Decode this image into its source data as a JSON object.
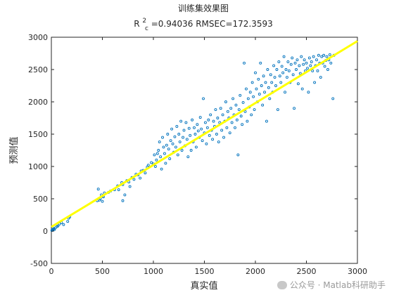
{
  "chart_data": {
    "type": "scatter",
    "title": "训练集效果图",
    "subtitle": {
      "r2_base": "R",
      "r2_sup": "2",
      "r2_sub": "c",
      "rest": "=0.94036  RMSEC=172.3593"
    },
    "xlabel": "真实值",
    "ylabel": "预测值",
    "xlim": [
      0,
      3000
    ],
    "ylim": [
      -500,
      3000
    ],
    "xticks": [
      "0",
      "500",
      "1000",
      "1500",
      "2000",
      "2500",
      "3000"
    ],
    "yticks": [
      "-500",
      "0",
      "500",
      "1000",
      "1500",
      "2000",
      "2500",
      "3000"
    ],
    "grid": false,
    "colors": {
      "points": "#0072BD",
      "fit_line": "#FFFF00",
      "axes": "#262626"
    },
    "fit_line": {
      "x": [
        0,
        3000
      ],
      "y": [
        65,
        2940
      ]
    },
    "series": [
      {
        "values": [
          [
            5,
            10
          ],
          [
            8,
            20
          ],
          [
            12,
            15
          ],
          [
            18,
            30
          ],
          [
            25,
            40
          ],
          [
            30,
            25
          ],
          [
            40,
            50
          ],
          [
            55,
            70
          ],
          [
            65,
            80
          ],
          [
            80,
            110
          ],
          [
            100,
            130
          ],
          [
            120,
            100
          ],
          [
            160,
            150
          ],
          [
            170,
            200
          ],
          [
            180,
            220
          ],
          [
            450,
            470
          ],
          [
            460,
            650
          ],
          [
            470,
            480
          ],
          [
            480,
            500
          ],
          [
            490,
            560
          ],
          [
            500,
            460
          ],
          [
            500,
            540
          ],
          [
            510,
            530
          ],
          [
            520,
            590
          ],
          [
            560,
            600
          ],
          [
            580,
            620
          ],
          [
            620,
            640
          ],
          [
            650,
            700
          ],
          [
            660,
            640
          ],
          [
            690,
            750
          ],
          [
            700,
            470
          ],
          [
            700,
            720
          ],
          [
            720,
            560
          ],
          [
            740,
            780
          ],
          [
            760,
            760
          ],
          [
            770,
            690
          ],
          [
            790,
            830
          ],
          [
            810,
            800
          ],
          [
            830,
            880
          ],
          [
            850,
            870
          ],
          [
            870,
            820
          ],
          [
            880,
            930
          ],
          [
            900,
            940
          ],
          [
            920,
            900
          ],
          [
            940,
            990
          ],
          [
            950,
            1020
          ],
          [
            980,
            1060
          ],
          [
            1000,
            1040
          ],
          [
            1010,
            1180
          ],
          [
            1020,
            1000
          ],
          [
            1030,
            1100
          ],
          [
            1040,
            1200
          ],
          [
            1050,
            1250
          ],
          [
            1060,
            1380
          ],
          [
            1070,
            1150
          ],
          [
            1080,
            960
          ],
          [
            1090,
            1450
          ],
          [
            1100,
            1300
          ],
          [
            1110,
            1200
          ],
          [
            1120,
            1050
          ],
          [
            1130,
            1330
          ],
          [
            1140,
            1500
          ],
          [
            1150,
            1270
          ],
          [
            1160,
            1120
          ],
          [
            1170,
            1400
          ],
          [
            1180,
            1580
          ],
          [
            1190,
            1350
          ],
          [
            1200,
            1220
          ],
          [
            1210,
            1460
          ],
          [
            1220,
            1300
          ],
          [
            1230,
            1620
          ],
          [
            1240,
            1180
          ],
          [
            1250,
            1500
          ],
          [
            1260,
            1380
          ],
          [
            1270,
            1700
          ],
          [
            1280,
            1250
          ],
          [
            1290,
            1450
          ],
          [
            1300,
            1560
          ],
          [
            1310,
            1320
          ],
          [
            1320,
            1680
          ],
          [
            1330,
            1420
          ],
          [
            1340,
            1150
          ],
          [
            1350,
            1590
          ],
          [
            1360,
            1480
          ],
          [
            1370,
            1250
          ],
          [
            1380,
            1720
          ],
          [
            1390,
            1380
          ],
          [
            1400,
            1600
          ],
          [
            1410,
            1500
          ],
          [
            1420,
            1300
          ],
          [
            1430,
            1650
          ],
          [
            1440,
            1550
          ],
          [
            1450,
            1450
          ],
          [
            1460,
            1760
          ],
          [
            1470,
            1580
          ],
          [
            1480,
            1400
          ],
          [
            1490,
            2050
          ],
          [
            1500,
            1520
          ],
          [
            1510,
            1680
          ],
          [
            1520,
            1350
          ],
          [
            1530,
            1600
          ],
          [
            1540,
            1720
          ],
          [
            1550,
            1480
          ],
          [
            1560,
            1800
          ],
          [
            1570,
            1560
          ],
          [
            1580,
            1420
          ],
          [
            1590,
            1700
          ],
          [
            1600,
            1620
          ],
          [
            1610,
            1880
          ],
          [
            1620,
            1500
          ],
          [
            1630,
            1750
          ],
          [
            1640,
            1380
          ],
          [
            1650,
            1680
          ],
          [
            1660,
            1900
          ],
          [
            1670,
            1560
          ],
          [
            1680,
            1800
          ],
          [
            1690,
            1450
          ],
          [
            1700,
            1700
          ],
          [
            1710,
            2000
          ],
          [
            1720,
            1600
          ],
          [
            1730,
            1850
          ],
          [
            1740,
            1750
          ],
          [
            1750,
            1520
          ],
          [
            1760,
            1900
          ],
          [
            1770,
            1680
          ],
          [
            1780,
            2050
          ],
          [
            1790,
            1800
          ],
          [
            1800,
            1600
          ],
          [
            1810,
            1950
          ],
          [
            1820,
            1720
          ],
          [
            1830,
            1180
          ],
          [
            1840,
            1880
          ],
          [
            1850,
            2100
          ],
          [
            1860,
            1780
          ],
          [
            1870,
            1650
          ],
          [
            1880,
            1990
          ],
          [
            1890,
            2600
          ],
          [
            1900,
            1850
          ],
          [
            1910,
            2200
          ],
          [
            1920,
            1700
          ],
          [
            1930,
            2050
          ],
          [
            1940,
            1920
          ],
          [
            1950,
            2150
          ],
          [
            1960,
            1800
          ],
          [
            1970,
            2300
          ],
          [
            1980,
            2080
          ],
          [
            1990,
            1880
          ],
          [
            2000,
            2450
          ],
          [
            2010,
            2200
          ],
          [
            2020,
            2000
          ],
          [
            2030,
            2350
          ],
          [
            2040,
            2120
          ],
          [
            2050,
            2600
          ],
          [
            2060,
            2250
          ],
          [
            2070,
            1950
          ],
          [
            2080,
            2400
          ],
          [
            2090,
            2150
          ],
          [
            2100,
            2300
          ],
          [
            2110,
            1700
          ],
          [
            2120,
            2500
          ],
          [
            2130,
            2220
          ],
          [
            2140,
            2050
          ],
          [
            2150,
            2420
          ],
          [
            2160,
            2300
          ],
          [
            2170,
            2150
          ],
          [
            2180,
            2560
          ],
          [
            2190,
            2380
          ],
          [
            2200,
            2250
          ],
          [
            2210,
            2500
          ],
          [
            2220,
            1880
          ],
          [
            2230,
            2620
          ],
          [
            2240,
            2400
          ],
          [
            2250,
            2300
          ],
          [
            2260,
            2550
          ],
          [
            2270,
            2450
          ],
          [
            2280,
            2700
          ],
          [
            2290,
            2150
          ],
          [
            2300,
            2500
          ],
          [
            2310,
            2380
          ],
          [
            2320,
            2620
          ],
          [
            2330,
            2480
          ],
          [
            2340,
            2300
          ],
          [
            2350,
            2580
          ],
          [
            2360,
            2680
          ],
          [
            2370,
            2420
          ],
          [
            2380,
            1900
          ],
          [
            2390,
            2600
          ],
          [
            2400,
            2500
          ],
          [
            2410,
            2650
          ],
          [
            2420,
            2280
          ],
          [
            2430,
            2560
          ],
          [
            2440,
            2440
          ],
          [
            2450,
            2700
          ],
          [
            2460,
            2200
          ],
          [
            2470,
            2580
          ],
          [
            2480,
            2650
          ],
          [
            2490,
            2480
          ],
          [
            2500,
            2600
          ],
          [
            2510,
            2520
          ],
          [
            2520,
            2150
          ],
          [
            2530,
            2680
          ],
          [
            2540,
            2560
          ],
          [
            2550,
            2620
          ],
          [
            2560,
            2480
          ],
          [
            2570,
            2700
          ],
          [
            2580,
            2300
          ],
          [
            2590,
            2560
          ],
          [
            2600,
            2650
          ],
          [
            2610,
            2480
          ],
          [
            2620,
            2720
          ],
          [
            2630,
            2600
          ],
          [
            2640,
            2380
          ],
          [
            2650,
            2700
          ],
          [
            2660,
            2600
          ],
          [
            2670,
            2720
          ],
          [
            2680,
            2550
          ],
          [
            2690,
            2640
          ],
          [
            2700,
            2700
          ],
          [
            2710,
            2500
          ],
          [
            2720,
            2650
          ],
          [
            2730,
            2730
          ],
          [
            2740,
            2600
          ],
          [
            2760,
            2050
          ],
          [
            2770,
            2720
          ]
        ]
      }
    ]
  },
  "watermark": {
    "text": "公众号 · Matlab科研助手",
    "icon": "wechat-icon"
  }
}
